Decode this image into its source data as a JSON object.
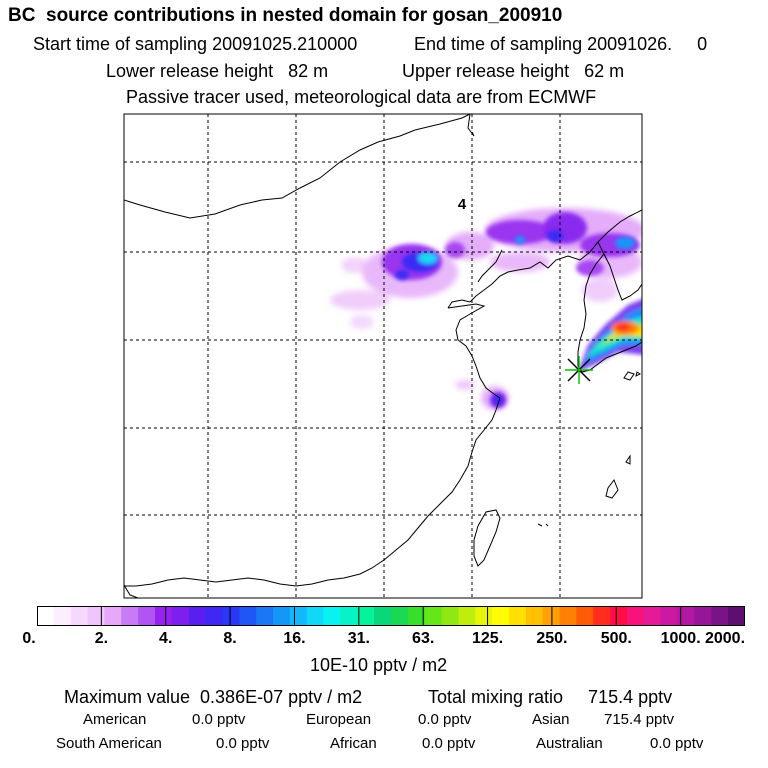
{
  "title": "BC  source contributions in nested domain for gosan_200910",
  "start_label": "Start time of sampling 20091025.210000",
  "end_label": "End time of sampling 20091026.     0",
  "lower_height": "Lower release height   82 m",
  "upper_height": "Upper release height   62 m",
  "tracer_note": "Passive tracer used, meteorological data are from ECMWF",
  "map_label": "4",
  "colorbar": {
    "ticks": [
      "0.",
      "2.",
      "4.",
      "8.",
      "16.",
      "31.",
      "63.",
      "125.",
      "250.",
      "500.",
      "1000.",
      "2000."
    ],
    "units": "10E-10 pptv / m2",
    "colors": [
      "#ffffff",
      "#fbeefe",
      "#f5d9fd",
      "#efc5fc",
      "#e7a8fa",
      "#c77bf5",
      "#b055f2",
      "#9622ef",
      "#7c1fef",
      "#5a1ff0",
      "#3f27f4",
      "#2a38f6",
      "#1f56f6",
      "#1a78f7",
      "#1597f8",
      "#12b8f9",
      "#0fd8f8",
      "#07f2f0",
      "#07f2c7",
      "#06f39d",
      "#0ad67a",
      "#1ad854",
      "#36df2a",
      "#66e619",
      "#8fe812",
      "#bfee0c",
      "#e7f50a",
      "#fffc06",
      "#ffe004",
      "#ffc003",
      "#ffa003",
      "#ff8003",
      "#ff5a05",
      "#ff2d1e",
      "#ff0d44",
      "#f6137b",
      "#e41a97",
      "#cc19a3",
      "#b218a1",
      "#961598",
      "#7a1387",
      "#5e0e6e"
    ]
  },
  "stats": {
    "max_label": "Maximum value  0.386E-07 pptv / m2",
    "total_label": "Total mixing ratio     715.4 pptv"
  },
  "regions": [
    {
      "name": "American",
      "value": "0.0 pptv"
    },
    {
      "name": "European",
      "value": "0.0 pptv"
    },
    {
      "name": "Asian",
      "value": "715.4 pptv"
    },
    {
      "name": "South American",
      "value": "0.0 pptv"
    },
    {
      "name": "African",
      "value": "0.0 pptv"
    },
    {
      "name": "Australian",
      "value": "0.0 pptv"
    }
  ]
}
